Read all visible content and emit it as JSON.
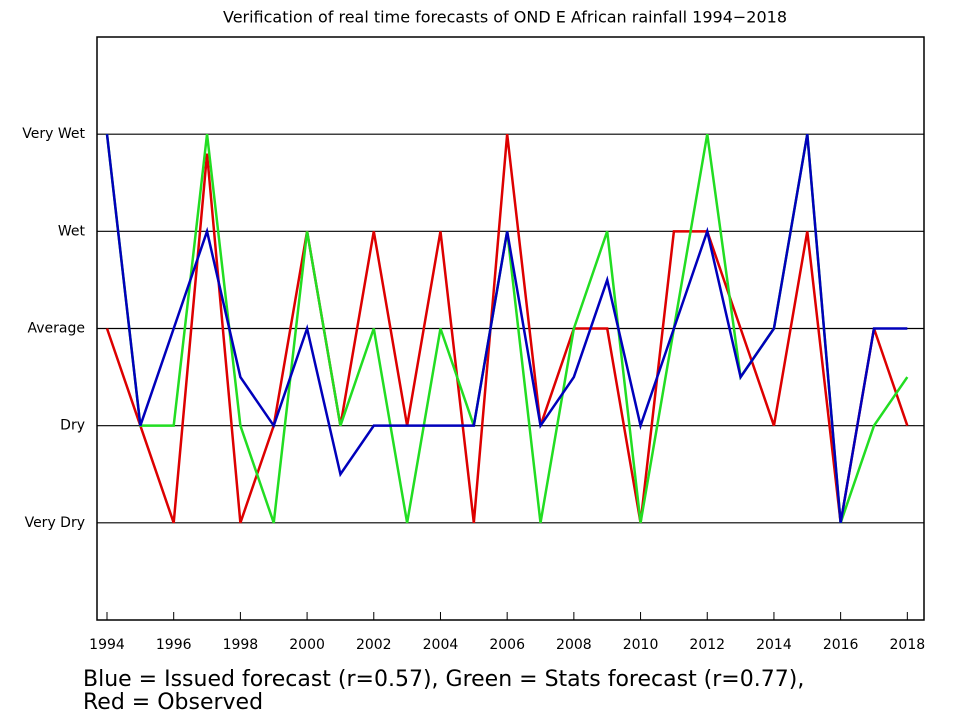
{
  "chart_data": {
    "type": "line",
    "title": "Verification of real time forecasts of OND E African rainfall 1994−2018",
    "caption": [
      "Blue = Issued forecast (r=0.57), Green = Stats forecast (r=0.77),",
      "Red = Observed"
    ],
    "x": [
      1994,
      1995,
      1996,
      1997,
      1998,
      1999,
      2000,
      2001,
      2002,
      2003,
      2004,
      2005,
      2006,
      2007,
      2008,
      2009,
      2010,
      2011,
      2012,
      2013,
      2014,
      2015,
      2016,
      2017,
      2018
    ],
    "series": [
      {
        "color": "#dd0000",
        "values": [
          3,
          2,
          1,
          4.8,
          1,
          2,
          4,
          2,
          4,
          2,
          4,
          1,
          5,
          2,
          3,
          3,
          1,
          4,
          4,
          3,
          2,
          4,
          1,
          3,
          2
        ]
      },
      {
        "color": "#22dd22",
        "values": [
          5,
          2,
          2,
          5,
          2,
          1,
          4,
          2,
          3,
          1,
          3,
          2,
          4,
          1,
          3,
          4,
          1,
          3,
          5,
          2.5,
          3,
          5,
          1,
          2,
          2.5
        ]
      },
      {
        "color": "#0000bb",
        "values": [
          5,
          2,
          3,
          4,
          2.5,
          2,
          3,
          1.5,
          2,
          2,
          2,
          2,
          4,
          2,
          2.5,
          3.5,
          2,
          3,
          4,
          2.5,
          3,
          5,
          1,
          3,
          3
        ]
      }
    ],
    "xlim": [
      1993.7,
      2018.5
    ],
    "xticks": [
      1994,
      1996,
      1998,
      2000,
      2002,
      2004,
      2006,
      2008,
      2010,
      2012,
      2014,
      2016,
      2018
    ],
    "ylim": [
      0,
      6
    ],
    "yticks": [
      {
        "value": 1,
        "label": "Very Dry"
      },
      {
        "value": 2,
        "label": "Dry"
      },
      {
        "value": 3,
        "label": "Average"
      },
      {
        "value": 4,
        "label": "Wet"
      },
      {
        "value": 5,
        "label": "Very Wet"
      }
    ],
    "grid": true
  }
}
